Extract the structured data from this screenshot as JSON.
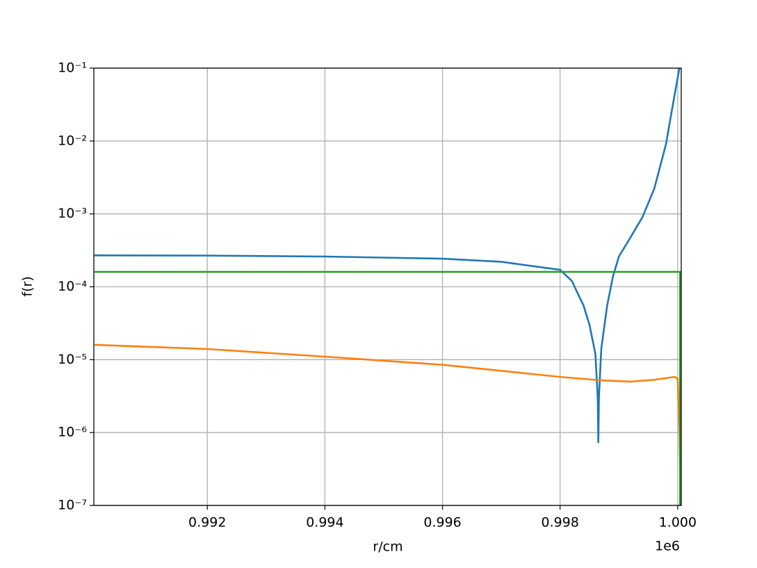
{
  "chart_data": {
    "type": "line",
    "xlabel": "r/cm",
    "ylabel": "f(r)",
    "x_offset_label": "1e6",
    "xlim": [
      0.99007,
      1.00006
    ],
    "xticks": [
      0.992,
      0.994,
      0.996,
      0.998,
      {
        "value": 1.0,
        "label": "1.000"
      }
    ],
    "ylim": [
      1e-07,
      0.1
    ],
    "yscale": "log",
    "yticks": [
      {
        "value": 1e-07,
        "label": "10⁻⁷"
      },
      {
        "value": 1e-06,
        "label": "10⁻⁶"
      },
      {
        "value": 1e-05,
        "label": "10⁻⁵"
      },
      {
        "value": 0.0001,
        "label": "10⁻⁴"
      },
      {
        "value": 0.001,
        "label": "10⁻³"
      },
      {
        "value": 0.01,
        "label": "10⁻²"
      },
      {
        "value": 0.1,
        "label": "10⁻¹"
      }
    ],
    "grid": true,
    "series": [
      {
        "color": "#1f77b4",
        "x": [
          0.99008,
          0.992,
          0.994,
          0.996,
          0.997,
          0.998,
          0.9982,
          0.9984,
          0.9985,
          0.9986,
          0.99864,
          0.99865,
          0.99866,
          0.9987,
          0.9988,
          0.9989,
          0.999,
          0.9992,
          0.9994,
          0.9996,
          0.9998,
          0.99994,
          1.00003
        ],
        "values": [
          0.00027,
          0.000268,
          0.00026,
          0.000243,
          0.00022,
          0.000171,
          0.00012,
          5.5e-05,
          3e-05,
          1.2e-05,
          3e-06,
          7.2e-07,
          3e-06,
          1.4e-05,
          5.5e-05,
          0.00014,
          0.00026,
          0.00048,
          0.0009,
          0.0022,
          0.009,
          0.04,
          0.1
        ]
      },
      {
        "color": "#ff7f0e",
        "x": [
          0.99008,
          0.992,
          0.994,
          0.996,
          0.998,
          0.9987,
          0.9992,
          0.9996,
          0.99995,
          1.0,
          1.00003,
          1.00005
        ],
        "values": [
          1.6e-05,
          1.4e-05,
          1.1e-05,
          8.5e-06,
          5.8e-06,
          5.2e-06,
          5e-06,
          5.3e-06,
          5.8e-06,
          5.5e-06,
          1e-06,
          1e-07
        ]
      },
      {
        "color": "#2ca02c",
        "x": [
          0.99008,
          1.00004,
          1.00004
        ],
        "values": [
          0.00016,
          0.00016,
          1e-07
        ]
      }
    ]
  }
}
